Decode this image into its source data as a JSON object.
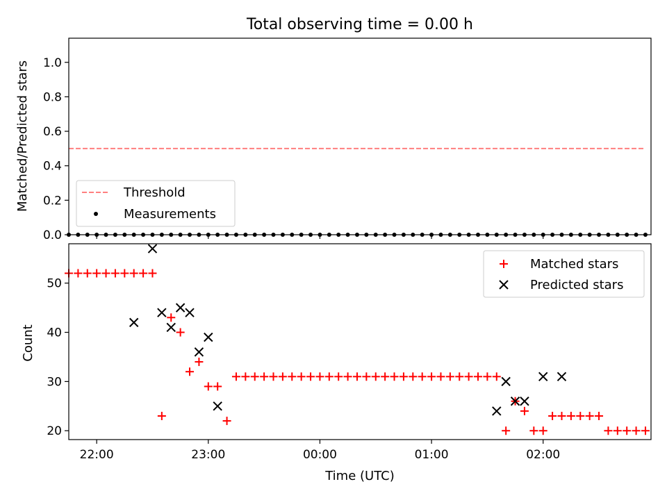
{
  "chart_data": [
    {
      "type": "scatter",
      "title": "Total observing time = 0.00 h",
      "xlabel": "",
      "ylabel": "Matched/Predicted stars",
      "xlim": [
        "21:45",
        "02:58"
      ],
      "ylim": [
        0,
        1.14
      ],
      "yticks": [
        0.0,
        0.2,
        0.4,
        0.6,
        0.8,
        1.0
      ],
      "ytick_labels": [
        "0.0",
        "0.2",
        "0.4",
        "0.6",
        "0.8",
        "1.0"
      ],
      "xticks": [
        "22:00",
        "23:00",
        "00:00",
        "01:00",
        "02:00"
      ],
      "legend_position": "lower-left",
      "threshold": {
        "name": "Threshold",
        "value": 0.5,
        "x_start": "21:45",
        "x_end": "02:55",
        "color": "#ff7f7f",
        "style": "dashed"
      },
      "series": [
        {
          "name": "Measurements",
          "marker": "dot",
          "color": "#000000",
          "x": [
            "21:45",
            "21:50",
            "21:55",
            "22:00",
            "22:05",
            "22:10",
            "22:15",
            "22:20",
            "22:25",
            "22:30",
            "22:35",
            "22:40",
            "22:45",
            "22:50",
            "22:55",
            "23:00",
            "23:05",
            "23:10",
            "23:15",
            "23:20",
            "23:25",
            "23:30",
            "23:35",
            "23:40",
            "23:45",
            "23:50",
            "23:55",
            "00:00",
            "00:05",
            "00:10",
            "00:15",
            "00:20",
            "00:25",
            "00:30",
            "00:35",
            "00:40",
            "00:45",
            "00:50",
            "00:55",
            "01:00",
            "01:05",
            "01:10",
            "01:15",
            "01:20",
            "01:25",
            "01:30",
            "01:35",
            "01:40",
            "01:45",
            "01:50",
            "01:55",
            "02:00",
            "02:05",
            "02:10",
            "02:15",
            "02:20",
            "02:25",
            "02:30",
            "02:35",
            "02:40",
            "02:45",
            "02:50",
            "02:55"
          ],
          "y": [
            0,
            0,
            0,
            0,
            0,
            0,
            0,
            0,
            0,
            0,
            0,
            0,
            0,
            0,
            0,
            0,
            0,
            0,
            0,
            0,
            0,
            0,
            0,
            0,
            0,
            0,
            0,
            0,
            0,
            0,
            0,
            0,
            0,
            0,
            0,
            0,
            0,
            0,
            0,
            0,
            0,
            0,
            0,
            0,
            0,
            0,
            0,
            0,
            0,
            0,
            0,
            0,
            0,
            0,
            0,
            0,
            0,
            0,
            0,
            0,
            0,
            0,
            0
          ]
        }
      ]
    },
    {
      "type": "scatter",
      "title": "",
      "xlabel": "Time (UTC)",
      "ylabel": "Count",
      "xlim": [
        "21:45",
        "02:58"
      ],
      "ylim": [
        18.2,
        58.0
      ],
      "yticks": [
        20,
        30,
        40,
        50
      ],
      "ytick_labels": [
        "20",
        "30",
        "40",
        "50"
      ],
      "xticks": [
        "22:00",
        "23:00",
        "00:00",
        "01:00",
        "02:00"
      ],
      "legend_position": "upper-right",
      "series": [
        {
          "name": "Matched stars",
          "marker": "plus",
          "color": "#ff0000",
          "x": [
            "21:45",
            "21:50",
            "21:55",
            "22:00",
            "22:05",
            "22:10",
            "22:15",
            "22:20",
            "22:25",
            "22:30",
            "22:35",
            "22:40",
            "22:45",
            "22:50",
            "22:55",
            "23:00",
            "23:05",
            "23:10",
            "23:15",
            "23:20",
            "23:25",
            "23:30",
            "23:35",
            "23:40",
            "23:45",
            "23:50",
            "23:55",
            "00:00",
            "00:05",
            "00:10",
            "00:15",
            "00:20",
            "00:25",
            "00:30",
            "00:35",
            "00:40",
            "00:45",
            "00:50",
            "00:55",
            "01:00",
            "01:05",
            "01:10",
            "01:15",
            "01:20",
            "01:25",
            "01:30",
            "01:35",
            "01:40",
            "01:45",
            "01:50",
            "01:55",
            "02:00",
            "02:05",
            "02:10",
            "02:15",
            "02:20",
            "02:25",
            "02:30",
            "02:35",
            "02:40",
            "02:45",
            "02:50",
            "02:55"
          ],
          "y": [
            52,
            52,
            52,
            52,
            52,
            52,
            52,
            52,
            52,
            52,
            23,
            43,
            40,
            32,
            34,
            29,
            29,
            22,
            31,
            31,
            31,
            31,
            31,
            31,
            31,
            31,
            31,
            31,
            31,
            31,
            31,
            31,
            31,
            31,
            31,
            31,
            31,
            31,
            31,
            31,
            31,
            31,
            31,
            31,
            31,
            31,
            31,
            20,
            26,
            24,
            20,
            20,
            23,
            23,
            23,
            23,
            23,
            23,
            20,
            20,
            20,
            20,
            20
          ]
        },
        {
          "name": "Predicted stars",
          "marker": "x",
          "color": "#000000",
          "x": [
            "22:20",
            "22:30",
            "22:35",
            "22:40",
            "22:45",
            "22:50",
            "22:55",
            "23:00",
            "23:05",
            "01:35",
            "01:40",
            "01:45",
            "01:50",
            "02:00",
            "02:10"
          ],
          "y": [
            42,
            57,
            44,
            41,
            45,
            44,
            36,
            39,
            25,
            24,
            30,
            26,
            26,
            31,
            31
          ]
        }
      ]
    }
  ]
}
